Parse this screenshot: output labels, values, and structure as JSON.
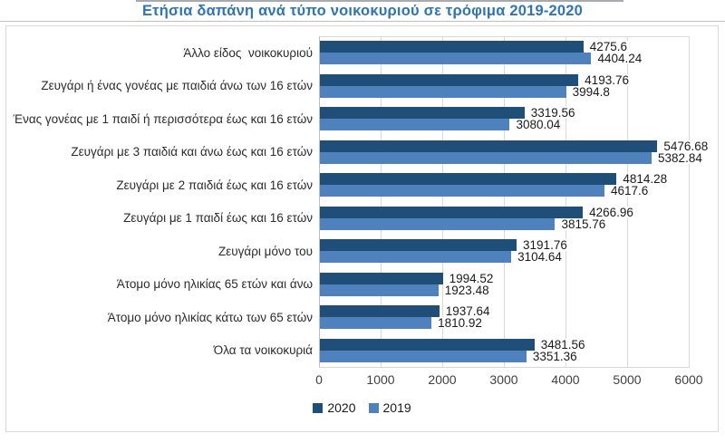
{
  "decoration": {
    "top_strip_color": "#8a8f96"
  },
  "chart_data": {
    "type": "bar",
    "orientation": "horizontal",
    "title": "Ετήσια δαπάνη ανά τύπο νοικοκυριού σε τρόφιμα 2019-2020",
    "title_color": "#2E75B6",
    "categories": [
      "Άλλο είδος  νοικοκυριού",
      "Ζευγάρι ή ένας γονέας με παιδιά άνω των 16 ετών",
      "Ένας γονέας με 1 παιδί ή περισσότερα έως και 16 ετών",
      "Ζευγάρι με 3 παιδιά και άνω έως και 16 ετών",
      "Ζευγάρι με 2 παιδιά έως και 16 ετών",
      "Ζευγάρι με 1 παιδί έως και 16 ετών",
      "Ζευγάρι μόνο του",
      "Άτομο μόνο ηλικίας 65 ετών και άνω",
      "Άτομο μόνο ηλικίας κάτω των 65 ετών",
      "Όλα τα νοικοκυριά"
    ],
    "series": [
      {
        "name": "2020",
        "color": "#1F4E79",
        "values": [
          4275.6,
          4193.76,
          3319.56,
          5476.68,
          4814.28,
          4266.96,
          3191.76,
          1994.52,
          1937.64,
          3481.56
        ]
      },
      {
        "name": "2019",
        "color": "#4F81BD",
        "values": [
          4404.24,
          3994.8,
          3080.04,
          5382.84,
          4617.6,
          3815.76,
          3104.64,
          1923.48,
          1810.92,
          3351.36
        ]
      }
    ],
    "xlim": [
      0,
      6000
    ],
    "xticks": [
      "0",
      "1000",
      "2000",
      "3000",
      "4000",
      "5000",
      "6000"
    ],
    "grid": true,
    "gridline_color": "#D9D9D9",
    "axis_line_color": "#BFBFBF",
    "data_labels": true,
    "legend_position": "bottom"
  }
}
